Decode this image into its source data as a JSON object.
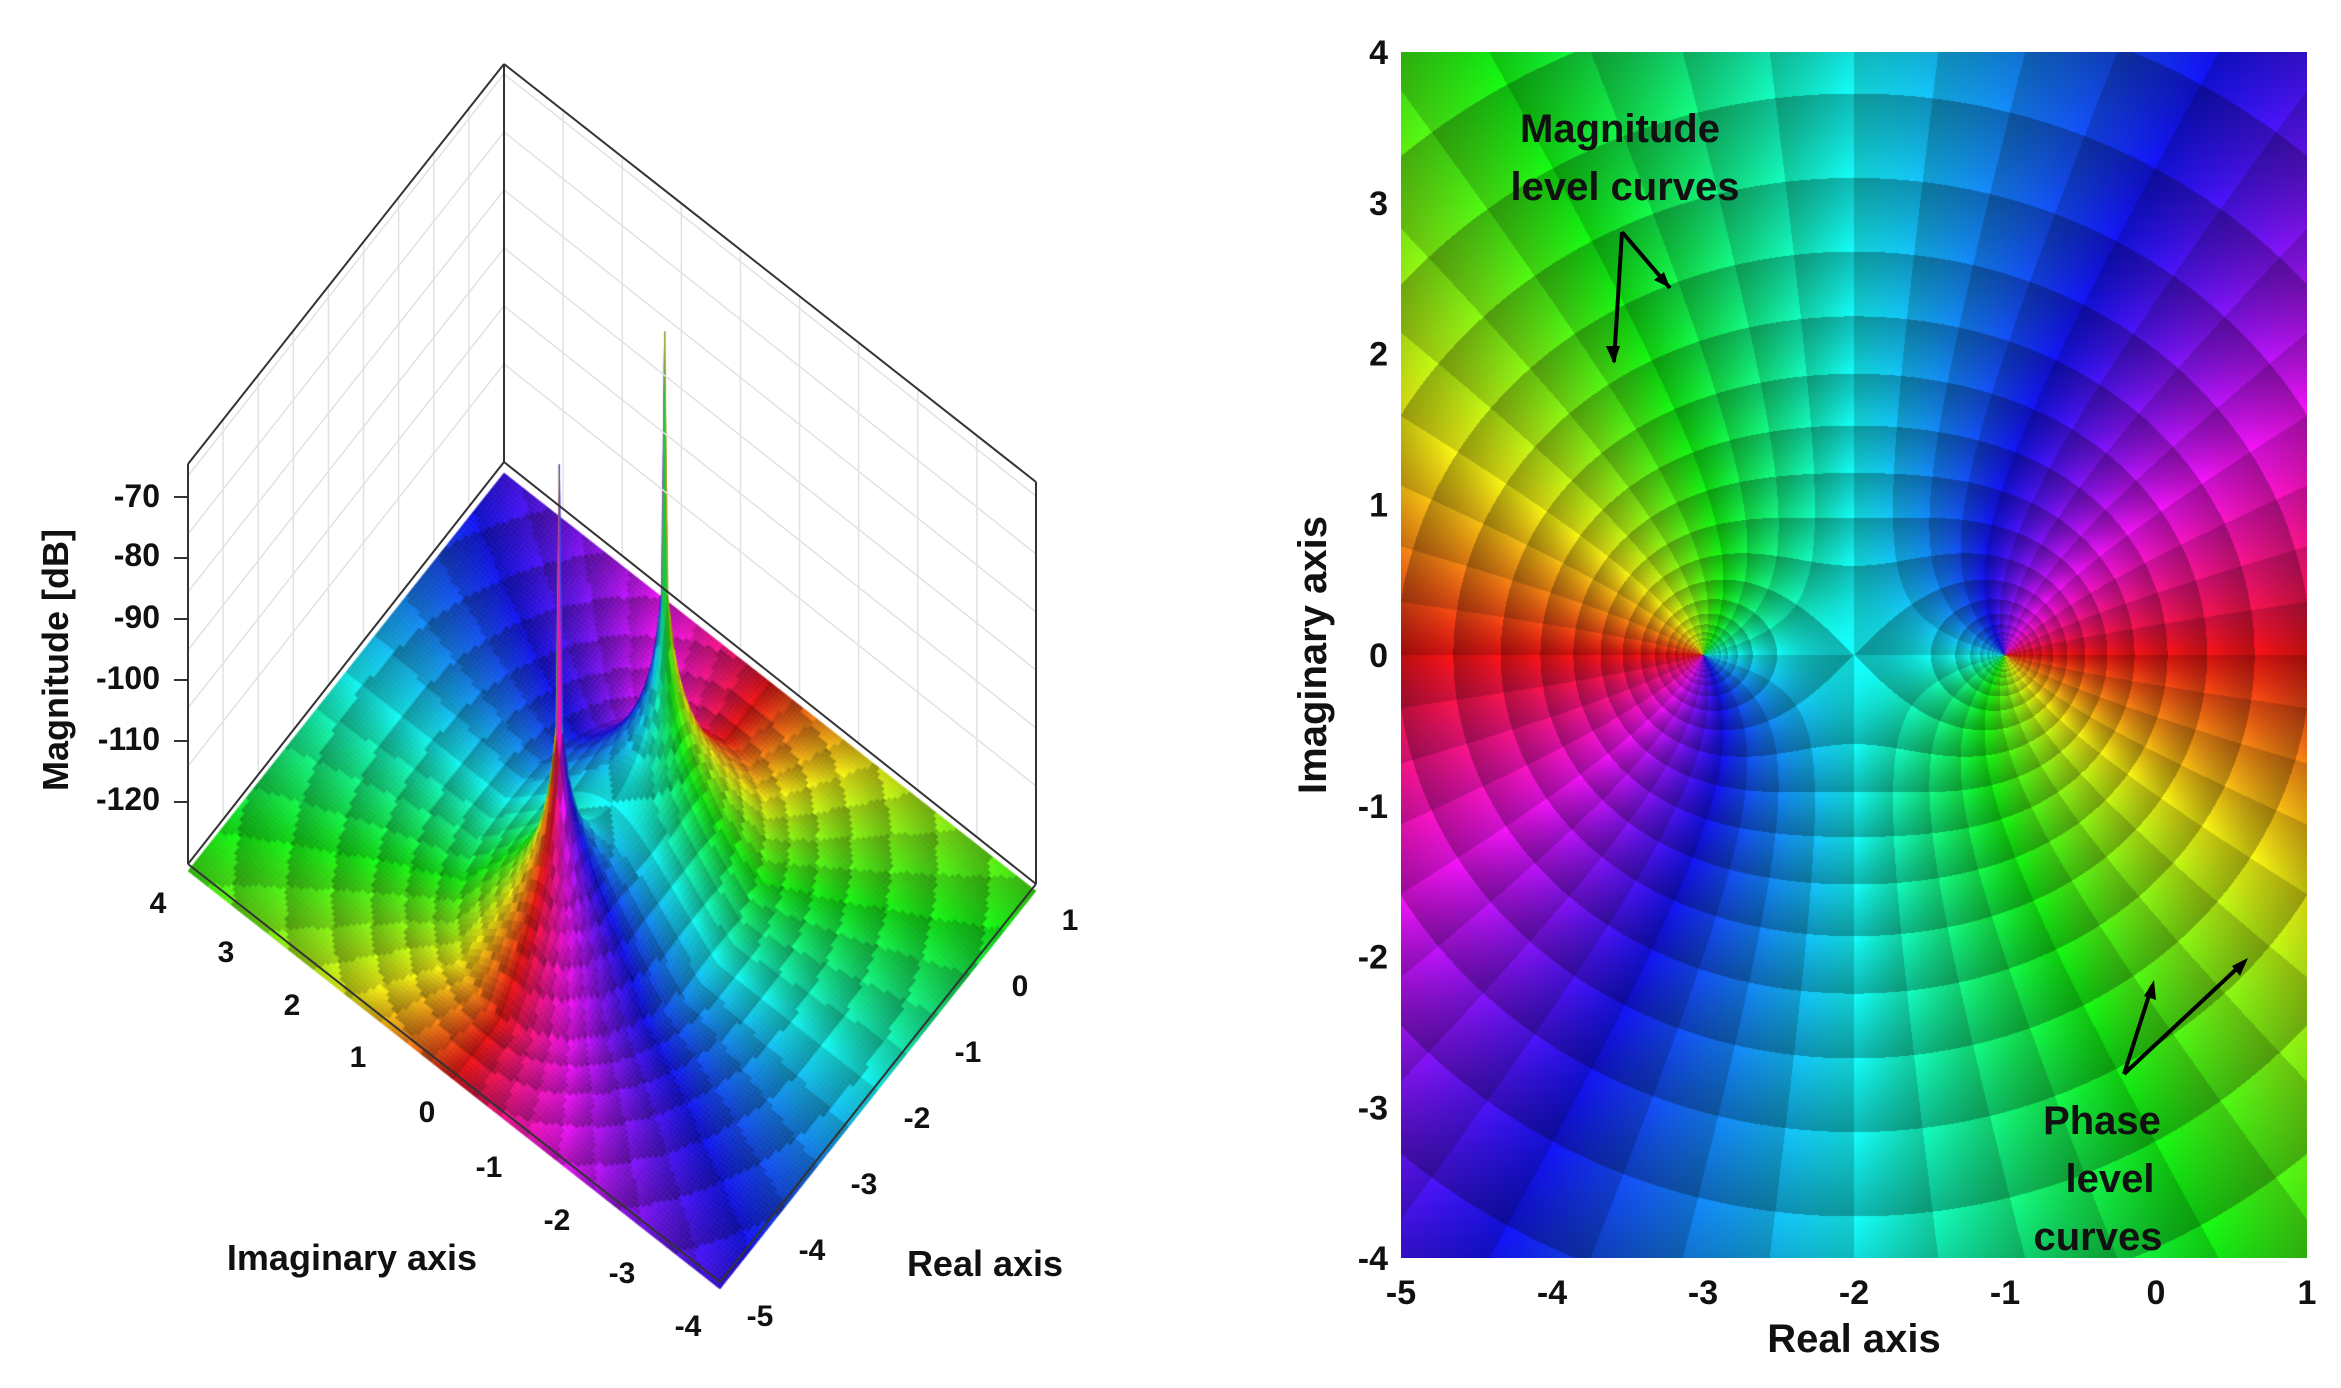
{
  "left_chart": {
    "zlabel": "Magnitude [dB]",
    "xlabel": "Real axis",
    "ylabel": "Imaginary axis",
    "ztick_labels": [
      "-70",
      "-80",
      "-90",
      "-100",
      "-110",
      "-120"
    ],
    "imag_tick_labels": [
      "4",
      "3",
      "2",
      "1",
      "0",
      "-1",
      "-2",
      "-3",
      "-4"
    ],
    "real_tick_labels": [
      "1",
      "0",
      "-1",
      "-2",
      "-3",
      "-4",
      "-5"
    ]
  },
  "right_chart": {
    "xlabel": "Real axis",
    "ylabel": "Imaginary axis",
    "xtick_labels": [
      "-5",
      "-4",
      "-3",
      "-2",
      "-1",
      "0",
      "1"
    ],
    "ytick_labels": [
      "4",
      "3",
      "2",
      "1",
      "0",
      "-1",
      "-2",
      "-3",
      "-4"
    ],
    "annotation_magnitude": [
      "Magnitude",
      "level curves"
    ],
    "annotation_phase": [
      "Phase",
      "level",
      "curves"
    ]
  },
  "chart_data": [
    {
      "type": "surface",
      "function": "poles at -3 and -1 on real axis",
      "poles": [
        [
          -3,
          0
        ],
        [
          -1,
          0
        ]
      ],
      "xlabel": "Real axis",
      "ylabel": "Imaginary axis",
      "zlabel": "Magnitude [dB]",
      "xlim": [
        -5,
        1
      ],
      "ylim": [
        -4,
        4
      ],
      "zticks": [
        -70,
        -80,
        -90,
        -100,
        -110,
        -120
      ],
      "coloring": "phase (hue) with magnitude level curves"
    },
    {
      "type": "heatmap",
      "function": "phase portrait, poles at -3 and -1",
      "poles": [
        [
          -3,
          0
        ],
        [
          -1,
          0
        ]
      ],
      "xlabel": "Real axis",
      "ylabel": "Imaginary axis",
      "xlim": [
        -5,
        1
      ],
      "ylim": [
        -4,
        4
      ],
      "xticks": [
        -5,
        -4,
        -3,
        -2,
        -1,
        0,
        1
      ],
      "yticks": [
        4,
        3,
        2,
        1,
        0,
        -1,
        -2,
        -3,
        -4
      ],
      "coloring": "phase (hue) with magnitude and phase level curves"
    }
  ]
}
